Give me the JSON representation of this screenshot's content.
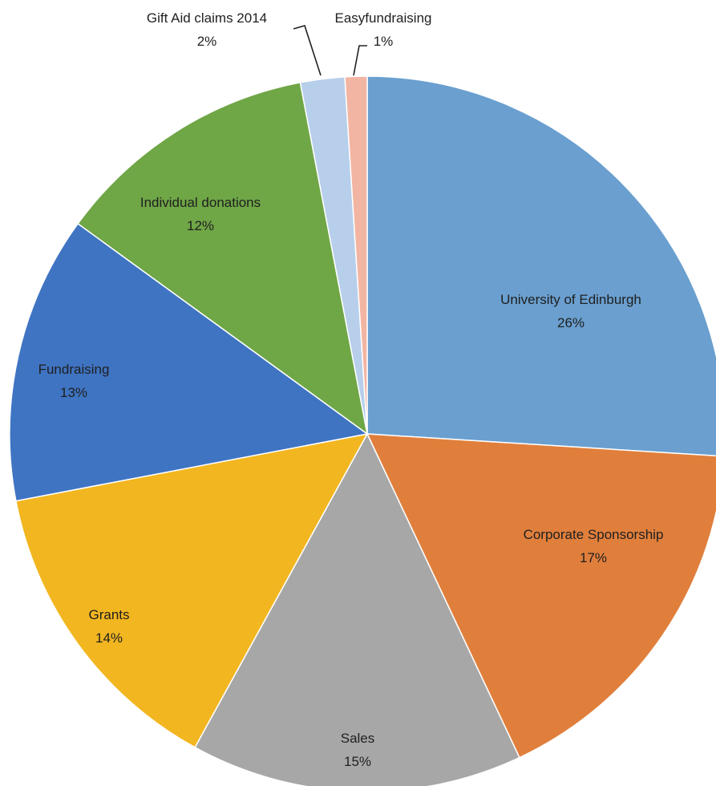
{
  "chart_data": {
    "type": "pie",
    "title": "",
    "slices": [
      {
        "label": "University of Edinburgh",
        "percent_label": "26%",
        "value": 26,
        "color": "#6a9fcf"
      },
      {
        "label": "Corporate Sponsorship",
        "percent_label": "17%",
        "value": 17,
        "color": "#e07f3c"
      },
      {
        "label": "Sales",
        "percent_label": "15%",
        "value": 15,
        "color": "#a7a7a7"
      },
      {
        "label": "Grants",
        "percent_label": "14%",
        "value": 14,
        "color": "#f2b620"
      },
      {
        "label": "Fundraising",
        "percent_label": "13%",
        "value": 13,
        "color": "#3f74c2"
      },
      {
        "label": "Individual donations",
        "percent_label": "12%",
        "value": 12,
        "color": "#6fa646"
      },
      {
        "label": "Gift Aid claims 2014",
        "percent_label": "2%",
        "value": 2,
        "color": "#b7cfea"
      },
      {
        "label": "Easyfundraising",
        "percent_label": "1%",
        "value": 1,
        "color": "#f2b5a3"
      }
    ],
    "legend": "none",
    "data_labels": "category name and percentage"
  }
}
